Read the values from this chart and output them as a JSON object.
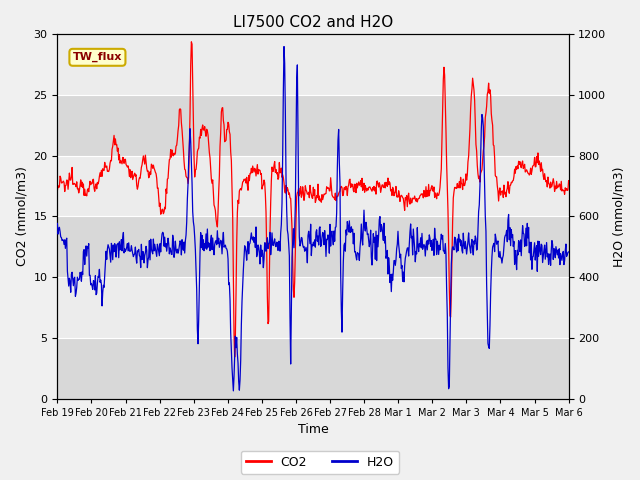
{
  "title": "LI7500 CO2 and H2O",
  "xlabel": "Time",
  "ylabel_left": "CO2 (mmol/m3)",
  "ylabel_right": "H2O (mmol/m3)",
  "annotation": "TW_flux",
  "ylim_left": [
    0,
    30
  ],
  "ylim_right": [
    0,
    1200
  ],
  "yticks_left": [
    0,
    5,
    10,
    15,
    20,
    25,
    30
  ],
  "yticks_right": [
    0,
    200,
    400,
    600,
    800,
    1000,
    1200
  ],
  "xtick_labels": [
    "Feb 19",
    "Feb 20",
    "Feb 21",
    "Feb 22",
    "Feb 23",
    "Feb 24",
    "Feb 25",
    "Feb 26",
    "Feb 27",
    "Feb 28",
    "Mar 1",
    "Mar 2",
    "Mar 3",
    "Mar 4",
    "Mar 5",
    "Mar 6"
  ],
  "plot_bg_color": "#e0e0e0",
  "band_color_light": "#ececec",
  "band_color_dark": "#d8d8d8",
  "co2_color": "#ff0000",
  "h2o_color": "#0000cc",
  "legend_co2": "CO2",
  "legend_h2o": "H2O",
  "title_fontsize": 11,
  "axis_label_fontsize": 9,
  "tick_fontsize": 8,
  "figsize": [
    6.4,
    4.8
  ],
  "dpi": 100,
  "n_days": 16,
  "n_pts": 768
}
